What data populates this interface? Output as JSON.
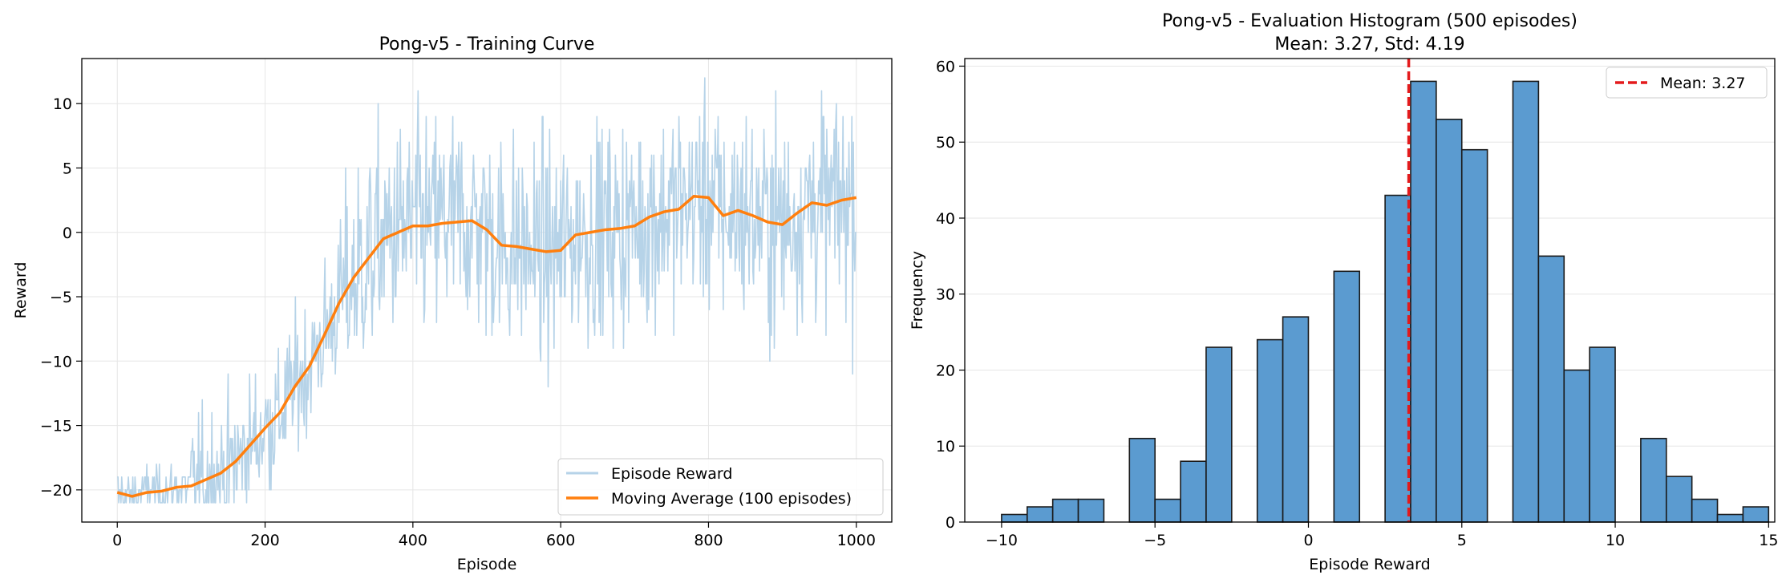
{
  "chart_data": [
    {
      "type": "line",
      "title": "Pong-v5 - Training Curve",
      "xlabel": "Episode",
      "ylabel": "Reward",
      "xlim": [
        -48,
        1048
      ],
      "ylim": [
        -22.5,
        13.5
      ],
      "xticks": [
        0,
        200,
        400,
        600,
        800,
        1000
      ],
      "yticks": [
        -20,
        -15,
        -10,
        -5,
        0,
        5,
        10
      ],
      "grid": true,
      "legend_position": "lower-right",
      "series": [
        {
          "name": "Episode Reward",
          "color": "#b6d3e8",
          "style": "noisy",
          "episodes": 1000,
          "raw_max_hint": 12,
          "raw_min": -21
        },
        {
          "name": "Moving Average (100 episodes)",
          "color": "#ff7f0e",
          "x": [
            0,
            20,
            40,
            60,
            80,
            100,
            120,
            140,
            160,
            180,
            200,
            220,
            240,
            260,
            280,
            300,
            320,
            340,
            360,
            380,
            400,
            420,
            440,
            460,
            480,
            500,
            520,
            540,
            560,
            580,
            600,
            620,
            640,
            660,
            680,
            700,
            720,
            740,
            760,
            780,
            800,
            820,
            840,
            860,
            880,
            900,
            920,
            940,
            960,
            980,
            1000
          ],
          "values": [
            -20.2,
            -20.5,
            -20.2,
            -20.1,
            -19.8,
            -19.7,
            -19.2,
            -18.7,
            -17.8,
            -16.5,
            -15.2,
            -14.0,
            -12.0,
            -10.4,
            -8.0,
            -5.5,
            -3.5,
            -2.0,
            -0.5,
            0.0,
            0.5,
            0.5,
            0.7,
            0.8,
            0.9,
            0.2,
            -1.0,
            -1.1,
            -1.3,
            -1.5,
            -1.4,
            -0.2,
            0.0,
            0.2,
            0.3,
            0.5,
            1.2,
            1.6,
            1.8,
            2.8,
            2.7,
            1.3,
            1.7,
            1.3,
            0.8,
            0.6,
            1.5,
            2.3,
            2.1,
            2.5,
            2.7
          ]
        }
      ]
    },
    {
      "type": "bar",
      "title": "Pong-v5 - Evaluation Histogram (500 episodes)",
      "subtitle": "Mean: 3.27, Std: 4.19",
      "xlabel": "Episode Reward",
      "ylabel": "Frequency",
      "xlim": [
        -11.2,
        15.2
      ],
      "ylim": [
        0,
        61
      ],
      "xticks": [
        -10,
        -5,
        0,
        5,
        10,
        15
      ],
      "yticks": [
        0,
        10,
        20,
        30,
        40,
        50,
        60
      ],
      "grid": true,
      "grid_axis": "y",
      "bar_color": "#5b9bd0",
      "bin_width": 0.8333,
      "bins_start": -10,
      "counts": [
        1,
        2,
        3,
        3,
        0,
        11,
        3,
        8,
        23,
        0,
        24,
        27,
        0,
        33,
        0,
        43,
        58,
        53,
        49,
        0,
        58,
        35,
        20,
        23,
        0,
        11,
        6,
        3,
        1,
        2
      ],
      "mean_line": {
        "value": 3.27,
        "color": "#e41a1c",
        "label": "Mean: 3.27"
      },
      "legend_position": "top-right"
    }
  ]
}
